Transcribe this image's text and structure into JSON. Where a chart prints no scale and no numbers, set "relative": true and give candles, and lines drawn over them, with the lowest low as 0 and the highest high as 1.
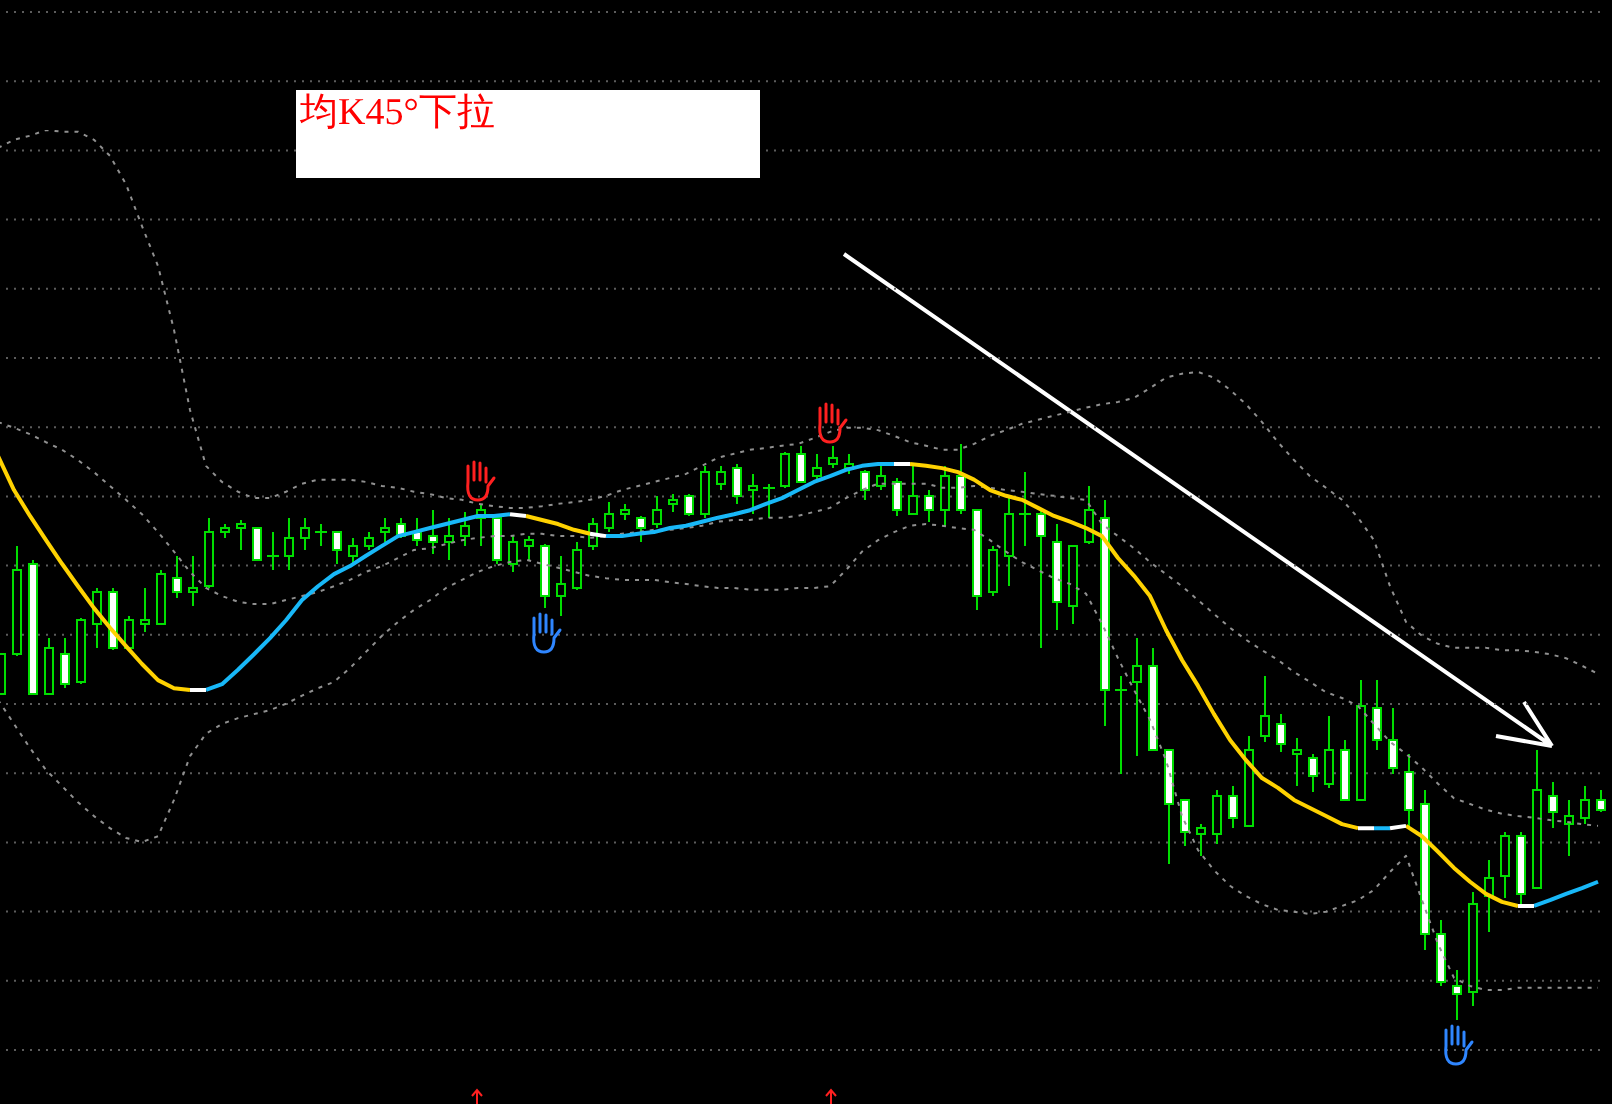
{
  "chart_data": {
    "type": "candlestick",
    "title": "均K45°下拉",
    "relative": true,
    "grid": "y",
    "marker": "none",
    "color": "#00dd00",
    "categories": [
      null,
      null,
      null,
      null,
      null,
      null,
      null,
      null,
      null,
      null,
      null,
      null,
      null,
      null,
      null,
      null,
      null,
      null,
      null,
      null,
      null,
      null,
      null,
      null,
      null,
      null,
      null,
      null,
      null,
      null,
      null,
      null,
      null,
      null,
      null,
      null,
      null,
      null,
      null,
      null,
      null,
      null,
      null,
      null,
      null,
      null,
      null,
      null,
      null,
      null,
      null,
      null,
      null,
      null,
      null,
      null,
      null,
      null,
      null,
      null,
      null,
      null,
      null,
      null,
      null,
      null,
      null,
      null,
      null,
      null,
      null,
      null,
      null,
      null,
      null,
      null,
      null,
      null,
      null,
      null,
      null,
      null,
      null,
      null,
      null,
      null,
      null,
      null,
      null,
      null,
      null,
      null,
      null,
      null,
      null,
      null,
      null,
      null,
      null,
      null,
      null
    ],
    "ohlc": [
      [
        0.566,
        0.635,
        0.566,
        0.635
      ],
      [
        0.635,
        0.823,
        0.632,
        0.781
      ],
      [
        0.792,
        0.799,
        0.566,
        0.566
      ],
      [
        0.566,
        0.663,
        0.566,
        0.646
      ],
      [
        0.635,
        0.663,
        0.576,
        0.583
      ],
      [
        0.587,
        0.698,
        0.583,
        0.694
      ],
      [
        0.688,
        0.75,
        0.646,
        0.743
      ],
      [
        0.743,
        0.75,
        0.642,
        0.646
      ],
      [
        0.646,
        0.701,
        0.646,
        0.694
      ],
      [
        0.688,
        0.75,
        0.674,
        0.694
      ],
      [
        0.688,
        0.781,
        0.688,
        0.774
      ],
      [
        0.767,
        0.806,
        0.733,
        0.743
      ],
      [
        0.743,
        0.806,
        0.719,
        0.75
      ],
      [
        0.753,
        0.872,
        0.75,
        0.847
      ],
      [
        0.847,
        0.861,
        0.837,
        0.854
      ],
      [
        0.854,
        0.868,
        0.816,
        0.861
      ],
      [
        0.854,
        0.854,
        0.799,
        0.799
      ],
      [
        0.806,
        0.847,
        0.781,
        0.806
      ],
      [
        0.806,
        0.872,
        0.781,
        0.837
      ],
      [
        0.837,
        0.872,
        0.816,
        0.854
      ],
      [
        0.847,
        0.861,
        0.823,
        0.847
      ],
      [
        0.847,
        0.847,
        0.792,
        0.816
      ],
      [
        0.806,
        0.837,
        0.792,
        0.823
      ],
      [
        0.823,
        0.847,
        0.816,
        0.837
      ],
      [
        0.847,
        0.872,
        0.83,
        0.854
      ],
      [
        0.861,
        0.872,
        0.837,
        0.84
      ],
      [
        0.847,
        0.872,
        0.823,
        0.833
      ],
      [
        0.84,
        0.885,
        0.809,
        0.83
      ],
      [
        0.83,
        0.872,
        0.799,
        0.84
      ],
      [
        0.84,
        0.882,
        0.823,
        0.858
      ],
      [
        0.872,
        0.896,
        0.823,
        0.885
      ],
      [
        0.872,
        0.878,
        0.792,
        0.799
      ],
      [
        0.792,
        0.84,
        0.778,
        0.83
      ],
      [
        0.823,
        0.84,
        0.799,
        0.833
      ],
      [
        0.823,
        0.826,
        0.715,
        0.736
      ],
      [
        0.736,
        0.806,
        0.701,
        0.757
      ],
      [
        0.75,
        0.83,
        0.747,
        0.816
      ],
      [
        0.823,
        0.872,
        0.816,
        0.861
      ],
      [
        0.854,
        0.899,
        0.847,
        0.878
      ],
      [
        0.878,
        0.896,
        0.868,
        0.885
      ],
      [
        0.872,
        0.875,
        0.83,
        0.854
      ],
      [
        0.861,
        0.91,
        0.854,
        0.885
      ],
      [
        0.896,
        0.913,
        0.882,
        0.903
      ],
      [
        0.91,
        0.913,
        0.875,
        0.878
      ],
      [
        0.878,
        0.962,
        0.872,
        0.951
      ],
      [
        0.931,
        0.962,
        0.92,
        0.951
      ],
      [
        0.958,
        0.965,
        0.896,
        0.91
      ],
      [
        0.92,
        0.948,
        0.878,
        0.927
      ],
      [
        0.924,
        0.931,
        0.872,
        0.924
      ],
      [
        0.927,
        0.986,
        0.924,
        0.983
      ],
      [
        0.983,
        0.997,
        0.934,
        0.934
      ],
      [
        0.944,
        0.983,
        0.934,
        0.958
      ],
      [
        0.965,
        0.997,
        0.958,
        0.976
      ],
      [
        0.958,
        0.983,
        0.948,
        0.965
      ],
      [
        0.951,
        0.955,
        0.903,
        0.92
      ],
      [
        0.927,
        0.962,
        0.92,
        0.944
      ],
      [
        0.934,
        0.941,
        0.875,
        0.885
      ],
      [
        0.878,
        0.962,
        0.878,
        0.91
      ],
      [
        0.91,
        0.92,
        0.865,
        0.885
      ],
      [
        0.885,
        0.962,
        0.858,
        0.944
      ],
      [
        0.944,
        1.0,
        0.878,
        0.885
      ],
      [
        0.885,
        0.885,
        0.712,
        0.736
      ],
      [
        0.743,
        0.823,
        0.736,
        0.816
      ],
      [
        0.806,
        0.906,
        0.753,
        0.878
      ],
      [
        0.878,
        0.951,
        0.823,
        0.878
      ],
      [
        0.878,
        0.885,
        0.646,
        0.84
      ],
      [
        0.83,
        0.861,
        0.677,
        0.726
      ],
      [
        0.719,
        0.823,
        0.688,
        0.823
      ],
      [
        0.83,
        0.927,
        0.826,
        0.885
      ],
      [
        0.872,
        0.903,
        0.51,
        0.573
      ],
      [
        0.573,
        0.597,
        0.427,
        0.573
      ],
      [
        0.587,
        0.663,
        0.458,
        0.615
      ],
      [
        0.615,
        0.646,
        0.469,
        0.469
      ],
      [
        0.469,
        0.469,
        0.271,
        0.375
      ],
      [
        0.382,
        0.382,
        0.302,
        0.326
      ],
      [
        0.323,
        0.34,
        0.285,
        0.333
      ],
      [
        0.323,
        0.399,
        0.306,
        0.389
      ],
      [
        0.389,
        0.406,
        0.333,
        0.351
      ],
      [
        0.337,
        0.493,
        0.337,
        0.469
      ],
      [
        0.493,
        0.597,
        0.483,
        0.528
      ],
      [
        0.514,
        0.531,
        0.465,
        0.479
      ],
      [
        0.462,
        0.49,
        0.406,
        0.469
      ],
      [
        0.455,
        0.462,
        0.396,
        0.424
      ],
      [
        0.41,
        0.528,
        0.403,
        0.469
      ],
      [
        0.469,
        0.486,
        0.382,
        0.382
      ],
      [
        0.382,
        0.59,
        0.382,
        0.545
      ],
      [
        0.542,
        0.59,
        0.469,
        0.486
      ],
      [
        0.486,
        0.542,
        0.427,
        0.438
      ],
      [
        0.431,
        0.462,
        0.337,
        0.365
      ],
      [
        0.375,
        0.399,
        0.122,
        0.149
      ],
      [
        0.149,
        0.174,
        0.059,
        0.066
      ],
      [
        0.059,
        0.087,
        0,
        0.045
      ],
      [
        0.049,
        0.222,
        0.024,
        0.201
      ],
      [
        0.215,
        0.278,
        0.153,
        0.247
      ],
      [
        0.25,
        0.326,
        0.212,
        0.319
      ],
      [
        0.319,
        0.326,
        0.201,
        0.219
      ],
      [
        0.229,
        0.469,
        0.229,
        0.399
      ],
      [
        0.389,
        0.413,
        0.333,
        0.361
      ],
      [
        0.34,
        0.382,
        0.285,
        0.354
      ],
      [
        0.351,
        0.406,
        0.34,
        0.382
      ],
      [
        0.382,
        0.399,
        0.361,
        0.365
      ]
    ],
    "colors": [
      "#000000",
      "#000000",
      "#ffffff",
      "#000000",
      "#ffffff",
      "#000000",
      "#000000",
      "#ffffff",
      "#000000",
      "#000000",
      "#000000",
      "#ffffff",
      "#000000",
      "#000000",
      "#000000",
      "#000000",
      "#ffffff",
      "#00dd00",
      "#000000",
      "#000000",
      "#00dd00",
      "#ffffff",
      "#000000",
      "#000000",
      "#000000",
      "#ffffff",
      "#ffffff",
      "#ffffff",
      "#000000",
      "#000000",
      "#000000",
      "#ffffff",
      "#000000",
      "#000000",
      "#ffffff",
      "#000000",
      "#000000",
      "#000000",
      "#000000",
      "#000000",
      "#ffffff",
      "#000000",
      "#000000",
      "#ffffff",
      "#000000",
      "#000000",
      "#ffffff",
      "#000000",
      "#00dd00",
      "#000000",
      "#ffffff",
      "#000000",
      "#000000",
      "#000000",
      "#ffffff",
      "#000000",
      "#ffffff",
      "#000000",
      "#ffffff",
      "#000000",
      "#ffffff",
      "#ffffff",
      "#000000",
      "#000000",
      "#00dd00",
      "#ffffff",
      "#ffffff",
      "#000000",
      "#000000",
      "#ffffff",
      "#00dd00",
      "#000000",
      "#ffffff",
      "#ffffff",
      "#ffffff",
      "#000000",
      "#000000",
      "#ffffff",
      "#000000",
      "#000000",
      "#ffffff",
      "#000000",
      "#ffffff",
      "#000000",
      "#ffffff",
      "#000000",
      "#ffffff",
      "#ffffff",
      "#ffffff",
      "#ffffff",
      "#ffffff",
      "#ffffff",
      "#000000",
      "#000000",
      "#000000",
      "#ffffff",
      "#000000",
      "#ffffff",
      "#000000",
      "#000000",
      "#ffffff"
    ],
    "series": [
      {
        "type": "line",
        "color": "#909090",
        "line_style": "dotted",
        "values": [
          1.514,
          1.528,
          1.535,
          1.545,
          1.542,
          1.542,
          1.528,
          1.5,
          1.451,
          1.378,
          1.309,
          1.198,
          1.059,
          0.962,
          0.934,
          0.917,
          0.906,
          0.906,
          0.917,
          0.931,
          0.938,
          0.938,
          0.938,
          0.934,
          0.927,
          0.924,
          0.917,
          0.913,
          0.906,
          0.903,
          0.896,
          0.892,
          0.889,
          0.889,
          0.892,
          0.896,
          0.899,
          0.903,
          0.91,
          0.92,
          0.927,
          0.934,
          0.941,
          0.948,
          0.962,
          0.976,
          0.983,
          0.99,
          0.993,
          0.997,
          1.0,
          1.01,
          1.021,
          1.028,
          1.028,
          1.024,
          1.014,
          1.003,
          0.997,
          0.99,
          0.99,
          1.0,
          1.014,
          1.024,
          1.035,
          1.042,
          1.049,
          1.056,
          1.063,
          1.069,
          1.073,
          1.08,
          1.097,
          1.115,
          1.122,
          1.125,
          1.115,
          1.094,
          1.069,
          1.038,
          1.003,
          0.972,
          0.944,
          0.924,
          0.903,
          0.872,
          0.833,
          0.753,
          0.691,
          0.667,
          0.653,
          0.646,
          0.646,
          0.646,
          0.642,
          0.642,
          0.639,
          0.635,
          0.628,
          0.615,
          0.601
        ]
      },
      {
        "type": "line",
        "color": "#909090",
        "line_style": "dotted",
        "values": [
          1.038,
          1.028,
          1.017,
          1.003,
          0.99,
          0.972,
          0.951,
          0.927,
          0.903,
          0.878,
          0.847,
          0.813,
          0.778,
          0.75,
          0.736,
          0.726,
          0.722,
          0.722,
          0.729,
          0.736,
          0.743,
          0.753,
          0.764,
          0.778,
          0.788,
          0.802,
          0.816,
          0.819,
          0.826,
          0.833,
          0.837,
          0.84,
          0.84,
          0.844,
          0.844,
          0.84,
          0.84,
          0.837,
          0.84,
          0.844,
          0.847,
          0.851,
          0.851,
          0.854,
          0.858,
          0.865,
          0.868,
          0.868,
          0.872,
          0.872,
          0.875,
          0.882,
          0.889,
          0.906,
          0.92,
          0.931,
          0.931,
          0.931,
          0.931,
          0.924,
          0.924,
          0.927,
          0.924,
          0.92,
          0.917,
          0.913,
          0.91,
          0.906,
          0.903,
          0.861,
          0.84,
          0.819,
          0.795,
          0.774,
          0.753,
          0.729,
          0.705,
          0.681,
          0.66,
          0.642,
          0.625,
          0.604,
          0.587,
          0.569,
          0.559,
          0.545,
          0.514,
          0.483,
          0.462,
          0.438,
          0.41,
          0.385,
          0.375,
          0.365,
          0.358,
          0.354,
          0.351,
          0.347,
          0.344,
          0.34,
          0.337
        ]
      },
      {
        "type": "line",
        "color": "#909090",
        "line_style": "dotted",
        "values": [
          0.556,
          0.514,
          0.472,
          0.434,
          0.406,
          0.378,
          0.354,
          0.333,
          0.316,
          0.309,
          0.319,
          0.382,
          0.458,
          0.497,
          0.514,
          0.524,
          0.531,
          0.538,
          0.549,
          0.563,
          0.576,
          0.587,
          0.611,
          0.639,
          0.667,
          0.691,
          0.712,
          0.729,
          0.75,
          0.764,
          0.778,
          0.788,
          0.795,
          0.799,
          0.792,
          0.785,
          0.778,
          0.771,
          0.767,
          0.764,
          0.764,
          0.764,
          0.76,
          0.757,
          0.753,
          0.75,
          0.75,
          0.747,
          0.747,
          0.747,
          0.75,
          0.75,
          0.753,
          0.781,
          0.813,
          0.833,
          0.847,
          0.858,
          0.861,
          0.858,
          0.854,
          0.851,
          0.833,
          0.813,
          0.795,
          0.781,
          0.767,
          0.757,
          0.74,
          0.688,
          0.628,
          0.573,
          0.521,
          0.451,
          0.354,
          0.295,
          0.26,
          0.233,
          0.215,
          0.201,
          0.191,
          0.188,
          0.184,
          0.188,
          0.198,
          0.208,
          0.226,
          0.257,
          0.285,
          0.208,
          0.132,
          0.073,
          0.059,
          0.052,
          0.052,
          0.056,
          0.056,
          0.056,
          0.056,
          0.056,
          0.056
        ]
      },
      {
        "type": "line",
        "color": "#ffd200",
        "values": [
          0.979,
          0.92,
          0.875,
          0.833,
          0.792,
          0.753,
          0.715,
          0.681,
          0.649,
          0.618,
          0.59,
          0.576,
          0.573,
          null,
          null,
          null,
          null,
          null,
          null,
          null,
          null,
          null,
          null,
          null,
          null,
          null,
          null,
          null,
          null,
          null,
          null,
          null,
          null,
          0.875,
          0.868,
          0.861,
          0.851,
          0.844,
          null,
          null,
          null,
          null,
          null,
          null,
          null,
          null,
          null,
          null,
          null,
          null,
          null,
          null,
          null,
          null,
          null,
          null,
          null,
          0.965,
          0.962,
          0.958,
          0.951,
          0.938,
          0.92,
          0.91,
          0.903,
          0.889,
          0.875,
          0.865,
          0.854,
          0.84,
          0.802,
          0.771,
          0.736,
          0.677,
          0.625,
          0.58,
          0.531,
          0.486,
          0.451,
          0.42,
          0.403,
          0.382,
          0.368,
          0.354,
          0.34,
          0.333,
          null,
          null,
          0.337,
          0.319,
          0.292,
          0.264,
          0.24,
          0.219,
          0.205,
          0.198,
          null,
          null,
          null,
          null,
          null
        ]
      },
      {
        "type": "line",
        "color": "#18b8f8",
        "values": [
          null,
          null,
          null,
          null,
          null,
          null,
          null,
          null,
          null,
          null,
          null,
          null,
          null,
          0.573,
          0.583,
          0.608,
          0.635,
          0.663,
          0.694,
          0.729,
          0.753,
          0.774,
          0.788,
          0.806,
          0.823,
          0.84,
          0.847,
          0.854,
          0.861,
          0.868,
          0.875,
          0.875,
          0.878,
          null,
          null,
          null,
          null,
          null,
          0.84,
          0.84,
          0.844,
          0.847,
          0.854,
          0.858,
          0.865,
          0.872,
          0.878,
          0.885,
          0.896,
          0.906,
          0.92,
          0.934,
          0.944,
          0.955,
          0.962,
          0.965,
          0.965,
          null,
          null,
          null,
          null,
          null,
          null,
          null,
          null,
          null,
          null,
          null,
          null,
          null,
          null,
          null,
          null,
          null,
          null,
          null,
          null,
          null,
          null,
          null,
          null,
          null,
          null,
          null,
          null,
          null,
          0.333,
          0.333,
          null,
          null,
          null,
          null,
          null,
          null,
          null,
          null,
          0.198,
          0.208,
          0.219,
          0.229,
          0.24
        ]
      },
      {
        "type": "line",
        "color": "#ffffff",
        "values": [
          null,
          null,
          null,
          null,
          null,
          null,
          null,
          null,
          null,
          null,
          null,
          null,
          0.573,
          0.573,
          null,
          null,
          null,
          null,
          null,
          null,
          null,
          null,
          null,
          null,
          null,
          null,
          null,
          null,
          null,
          null,
          null,
          null,
          null,
          null,
          null,
          null,
          null,
          0.844,
          0.84,
          null,
          null,
          null,
          null,
          null,
          null,
          null,
          null,
          null,
          null,
          null,
          null,
          null,
          null,
          null,
          null,
          null,
          0.965,
          0.965,
          null,
          null,
          null,
          null,
          null,
          null,
          null,
          null,
          null,
          null,
          null,
          null,
          null,
          null,
          null,
          null,
          null,
          null,
          null,
          null,
          null,
          null,
          null,
          null,
          null,
          null,
          null,
          0.333,
          0.333,
          null,
          null,
          null,
          null,
          null,
          null,
          null,
          null,
          0.198,
          0.198,
          null,
          null,
          null,
          null
        ]
      },
      {
        "type": "line",
        "color": "#ffffff",
        "values": [
          null,
          null,
          null,
          null,
          null,
          null,
          null,
          null,
          null,
          null,
          null,
          null,
          null,
          null,
          null,
          null,
          null,
          null,
          null,
          null,
          null,
          null,
          null,
          null,
          null,
          null,
          null,
          null,
          null,
          null,
          null,
          null,
          0.878,
          0.875,
          null,
          null,
          null,
          null,
          null,
          null,
          null,
          null,
          null,
          null,
          null,
          null,
          null,
          null,
          null,
          null,
          null,
          null,
          null,
          null,
          null,
          null,
          null,
          null,
          null,
          null,
          null,
          null,
          null,
          null,
          null,
          null,
          null,
          null,
          null,
          null,
          null,
          null,
          null,
          null,
          null,
          null,
          null,
          null,
          null,
          null,
          null,
          null,
          null,
          null,
          null,
          null,
          null,
          0.333,
          0.337,
          null,
          null,
          null,
          null,
          null,
          null,
          null,
          null,
          null,
          null,
          null,
          null
        ]
      }
    ]
  }
}
